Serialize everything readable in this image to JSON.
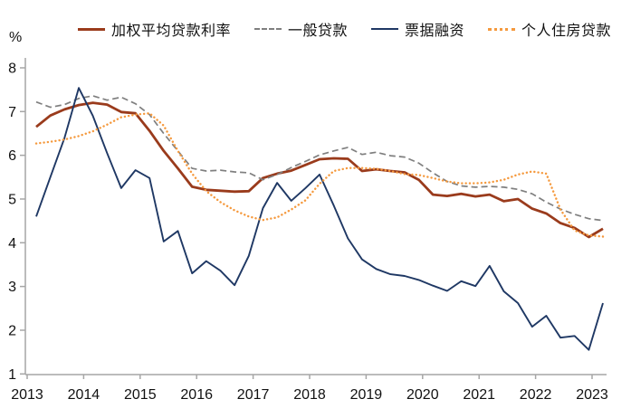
{
  "chart_data": {
    "type": "line",
    "title": "",
    "ylabel": "%",
    "xlabel": "",
    "ylim": [
      1,
      8
    ],
    "y_ticks": [
      1,
      2,
      3,
      4,
      5,
      6,
      7,
      8
    ],
    "x_ticks": [
      "2013",
      "2014",
      "2015",
      "2016",
      "2017",
      "2018",
      "2019",
      "2020",
      "2021",
      "2022",
      "2023"
    ],
    "frequency": "quarterly",
    "x_start": "2013Q1",
    "x_end": "2023Q1",
    "grid": "off",
    "legend_position": "top",
    "axis_color": "#A6A6A6",
    "text_color": "#111111",
    "series": [
      {
        "name": "加权平均贷款利率",
        "color": "#9A3B1C",
        "style": "solid",
        "width": 2.8,
        "values": [
          6.65,
          6.91,
          7.05,
          7.15,
          7.2,
          7.16,
          6.99,
          6.96,
          6.56,
          6.1,
          5.7,
          5.28,
          5.21,
          5.19,
          5.17,
          5.18,
          5.48,
          5.58,
          5.65,
          5.78,
          5.91,
          5.93,
          5.92,
          5.64,
          5.68,
          5.64,
          5.61,
          5.44,
          5.1,
          5.07,
          5.12,
          5.06,
          5.1,
          4.95,
          5.0,
          4.78,
          4.67,
          4.45,
          4.34,
          4.13,
          4.32
        ]
      },
      {
        "name": "一般贷款",
        "color": "#7F7F7F",
        "style": "dashed",
        "width": 1.7,
        "values": [
          7.22,
          7.1,
          7.16,
          7.3,
          7.36,
          7.26,
          7.33,
          7.18,
          6.93,
          6.5,
          6.1,
          5.7,
          5.64,
          5.66,
          5.62,
          5.6,
          5.44,
          5.56,
          5.72,
          5.86,
          6.01,
          6.1,
          6.18,
          6.02,
          6.07,
          5.99,
          5.96,
          5.82,
          5.6,
          5.4,
          5.3,
          5.27,
          5.29,
          5.27,
          5.22,
          5.12,
          4.93,
          4.77,
          4.65,
          4.55,
          4.51
        ]
      },
      {
        "name": "票据融资",
        "color": "#1F3864",
        "style": "solid",
        "width": 1.9,
        "values": [
          4.6,
          5.5,
          6.4,
          7.54,
          6.9,
          6.05,
          5.25,
          5.66,
          5.48,
          4.03,
          4.27,
          3.3,
          3.58,
          3.36,
          3.03,
          3.7,
          4.79,
          5.37,
          4.96,
          5.25,
          5.56,
          4.85,
          4.1,
          3.62,
          3.4,
          3.28,
          3.24,
          3.15,
          3.02,
          2.9,
          3.12,
          3.01,
          3.47,
          2.89,
          2.62,
          2.08,
          2.33,
          1.83,
          1.87,
          1.55,
          2.62
        ]
      },
      {
        "name": "个人住房贷款",
        "color": "#F5993D",
        "style": "dotted",
        "width": 2.4,
        "values": [
          6.27,
          6.31,
          6.36,
          6.44,
          6.55,
          6.7,
          6.87,
          6.93,
          6.96,
          6.68,
          6.1,
          5.58,
          5.18,
          4.93,
          4.74,
          4.6,
          4.52,
          4.58,
          4.76,
          4.97,
          5.35,
          5.64,
          5.71,
          5.71,
          5.69,
          5.64,
          5.57,
          5.55,
          5.48,
          5.4,
          5.36,
          5.36,
          5.38,
          5.44,
          5.56,
          5.63,
          5.58,
          4.76,
          4.28,
          4.17,
          4.14
        ]
      }
    ]
  }
}
